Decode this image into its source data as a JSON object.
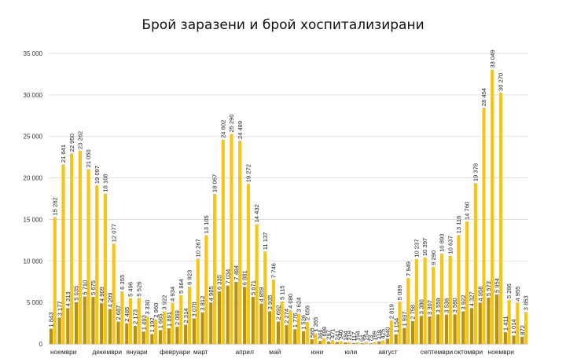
{
  "chart_data": {
    "type": "bar",
    "title": "Брой заразени и брой хоспитализирани",
    "xlabel": "",
    "ylabel": "",
    "ylim": [
      0,
      35000
    ],
    "yticks": [
      0,
      5000,
      10000,
      15000,
      20000,
      25000,
      30000,
      35000
    ],
    "ytick_labels": [
      "0",
      "5 000",
      "10 000",
      "15 000",
      "20 000",
      "25 000",
      "30 000",
      "35 000"
    ],
    "grid": true,
    "legend": "none",
    "colors": {
      "infected": "#F5C518",
      "hospitalized": "#B8920C"
    },
    "month_labels": [
      {
        "label": "ноември",
        "start": 0
      },
      {
        "label": "декември",
        "start": 5
      },
      {
        "label": "януари",
        "start": 9
      },
      {
        "label": "февруари",
        "start": 13
      },
      {
        "label": "март",
        "start": 17
      },
      {
        "label": "април",
        "start": 22
      },
      {
        "label": "май",
        "start": 26
      },
      {
        "label": "юни",
        "start": 31
      },
      {
        "label": "юли",
        "start": 35
      },
      {
        "label": "август",
        "start": 39
      },
      {
        "label": "септември",
        "start": 44
      },
      {
        "label": "октомври",
        "start": 48
      },
      {
        "label": "ноември",
        "start": 52
      }
    ],
    "series": [
      {
        "key": "infected",
        "values": [
          15282,
          21641,
          22950,
          23262,
          21050,
          19097,
          18108,
          12077,
          6355,
          5496,
          5526,
          3330,
          2960,
          3922,
          4934,
          5864,
          6923,
          10267,
          13105,
          18067,
          24602,
          25290,
          24489,
          19272,
          14432,
          11137,
          7746,
          5115,
          4080,
          3624,
          2656,
          1265,
          698,
          471,
          340,
          219,
          194,
          254,
          199,
          425,
          2819,
          5089,
          7949,
          10237,
          10397,
          9290,
          10893,
          10637,
          13116,
          14760,
          19378,
          28454,
          33049,
          30270,
          5286,
          4955,
          3853
        ],
        "labels": [
          "15 282",
          "21 641",
          "22 950",
          "23 262",
          "21 050",
          "19 097",
          "18 108",
          "12 077",
          "6 355",
          "5 496",
          "5 526",
          "3 330",
          "2 960",
          "3 922",
          "4 934",
          "5 864",
          "6 923",
          "10 267",
          "13 105",
          "18 067",
          "24 602",
          "25 290",
          "24 489",
          "19 272",
          "14 432",
          "11 137",
          "7 746",
          "5 115",
          "4 080",
          "3 624",
          "2 656",
          "1 265",
          "698",
          "471",
          "340",
          "219",
          "194",
          "254",
          "199",
          "425",
          "2 819",
          "5 089",
          "7 949",
          "10 237",
          "10 397",
          "9 290",
          "10 893",
          "10 637",
          "13 116",
          "14 760",
          "19 378",
          "28 454",
          "33 049",
          "30 270",
          "5 286",
          "4 955",
          "3 853"
        ]
      },
      {
        "key": "hospitalized",
        "values": [
          1843,
          3177,
          4313,
          5035,
          5710,
          5675,
          4909,
          4209,
          2687,
          2485,
          2173,
          1493,
          1192,
          1665,
          1891,
          2068,
          2314,
          3078,
          3812,
          4985,
          6335,
          7034,
          7484,
          6881,
          5671,
          4859,
          3935,
          2692,
          2274,
          1776,
          1526,
          565,
          366,
          297,
          241,
          184,
          117,
          94,
          73,
          318,
          640,
          1154,
          1937,
          2758,
          3380,
          3307,
          3559,
          3536,
          3560,
          3922,
          4327,
          4958,
          5573,
          5954,
          1411,
          1014,
          872
        ],
        "labels": [
          "1 843",
          "3 177",
          "4 313",
          "5 035",
          "5 710",
          "5 675",
          "4 909",
          "4 209",
          "2 687",
          "2 485",
          "2 173",
          "1 493",
          "1 192",
          "1 665",
          "1 891",
          "2 068",
          "2 314",
          "3 078",
          "3 812",
          "4 985",
          "6 335",
          "7 034",
          "7 484",
          "6 881",
          "5 671",
          "4 859",
          "3 935",
          "2 692",
          "2 274",
          "1 776",
          "1 526",
          "565",
          "366",
          "297",
          "241",
          "184",
          "117",
          "94",
          "73",
          "318",
          "640",
          "1 154",
          "1 937",
          "2 758",
          "3 380",
          "3 307",
          "3 559",
          "3 536",
          "3 560",
          "3 922",
          "4 327",
          "4 958",
          "5 573",
          "5 954",
          "1 411",
          "1 014",
          "872"
        ]
      }
    ]
  }
}
